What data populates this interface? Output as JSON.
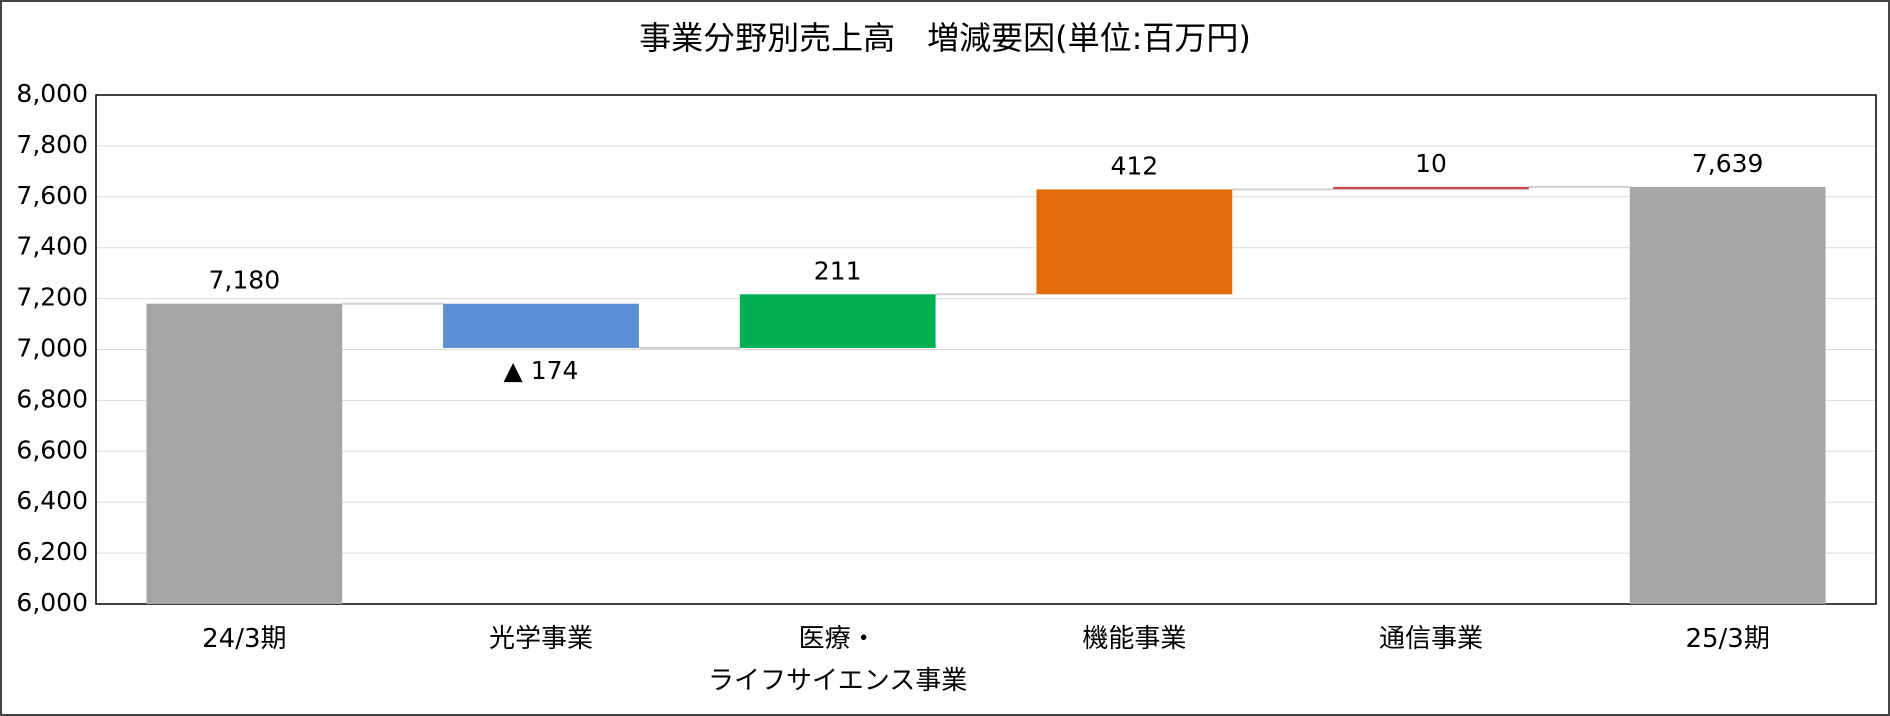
{
  "chart_data": {
    "type": "waterfall",
    "title": "事業分野別売上高　増減要因(単位:百万円)",
    "categories": [
      "24/3期",
      "光学事業",
      "医療・\nライフサイエンス事業",
      "機能事業",
      "通信事業",
      "25/3期"
    ],
    "values": [
      7180,
      -174,
      211,
      412,
      10,
      7639
    ],
    "value_labels": [
      "7,180",
      "▲ 174",
      "211",
      "412",
      "10",
      "7,639"
    ],
    "measure": [
      "absolute",
      "relative",
      "relative",
      "relative",
      "relative",
      "absolute"
    ],
    "colors": [
      "#a6a6a6",
      "#5b8fd6",
      "#00b050",
      "#e36c0a",
      "#c0504d",
      "#a6a6a6"
    ],
    "ylim": [
      6000,
      8000
    ],
    "yticks": [
      {
        "value": 6000,
        "label": "6,000"
      },
      {
        "value": 6200,
        "label": "6,200"
      },
      {
        "value": 6400,
        "label": "6,400"
      },
      {
        "value": 6600,
        "label": "6,600"
      },
      {
        "value": 6800,
        "label": "6,800"
      },
      {
        "value": 7000,
        "label": "7,000"
      },
      {
        "value": 7200,
        "label": "7,200"
      },
      {
        "value": 7400,
        "label": "7,400"
      },
      {
        "value": 7600,
        "label": "7,600"
      },
      {
        "value": 7800,
        "label": "7,800"
      },
      {
        "value": 8000,
        "label": "8,000"
      }
    ],
    "grid": true
  }
}
